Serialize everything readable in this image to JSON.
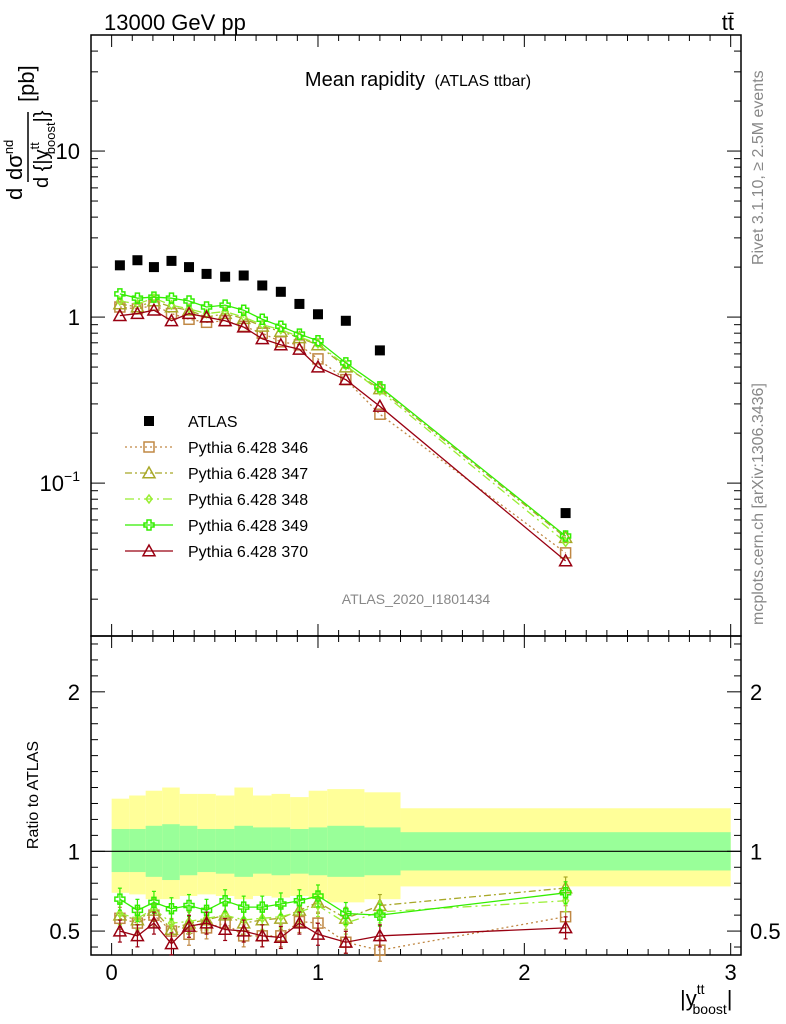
{
  "header": {
    "left": "13000 GeV pp",
    "right": "tt̄"
  },
  "side_text": {
    "rivet": "Rivet 3.1.10, ≥ 2.5M events",
    "mcplots": "mcplots.cern.ch [arXiv:1306.3436]"
  },
  "watermark": "ATLAS_2020_I1801434",
  "chart_data": {
    "type": "scatter",
    "title": "Mean rapidity",
    "subtitle": "(ATLAS ttbar)",
    "ylabel_main": "d dσ^nd / d{|y^tt_boost|} [pb]",
    "ylabel_ratio": "Ratio to ATLAS",
    "xlabel": "|y^tt_boost|",
    "xlim": [
      -0.1,
      3.05
    ],
    "ylim_main": [
      0.012,
      50
    ],
    "yscale_main": "log",
    "ylim_ratio": [
      0.35,
      2.35
    ],
    "x_ticks": [
      "0",
      "1",
      "2",
      "3"
    ],
    "y_ticks_main": [
      "10^-1",
      "1",
      "10"
    ],
    "y_ticks_ratio": [
      "0.5",
      "1",
      "2"
    ],
    "legend_position": "middle-left",
    "x": [
      0.04,
      0.125,
      0.205,
      0.29,
      0.375,
      0.46,
      0.55,
      0.64,
      0.73,
      0.82,
      0.91,
      1.0,
      1.135,
      1.3,
      2.2
    ],
    "bin_edges": [
      0,
      0.085,
      0.165,
      0.245,
      0.33,
      0.415,
      0.505,
      0.595,
      0.685,
      0.775,
      0.865,
      0.955,
      1.045,
      1.225,
      1.4,
      3.0
    ],
    "band_green": [
      [
        0.87,
        1.14
      ],
      [
        0.87,
        1.14
      ],
      [
        0.84,
        1.16
      ],
      [
        0.82,
        1.17
      ],
      [
        0.85,
        1.16
      ],
      [
        0.87,
        1.14
      ],
      [
        0.86,
        1.14
      ],
      [
        0.84,
        1.16
      ],
      [
        0.86,
        1.15
      ],
      [
        0.85,
        1.15
      ],
      [
        0.86,
        1.14
      ],
      [
        0.85,
        1.15
      ],
      [
        0.84,
        1.16
      ],
      [
        0.85,
        1.15
      ],
      [
        0.88,
        1.12
      ]
    ],
    "band_yellow": [
      [
        0.74,
        1.33
      ],
      [
        0.73,
        1.35
      ],
      [
        0.7,
        1.38
      ],
      [
        0.7,
        1.4
      ],
      [
        0.72,
        1.36
      ],
      [
        0.73,
        1.36
      ],
      [
        0.72,
        1.35
      ],
      [
        0.7,
        1.4
      ],
      [
        0.72,
        1.35
      ],
      [
        0.71,
        1.36
      ],
      [
        0.72,
        1.34
      ],
      [
        0.7,
        1.38
      ],
      [
        0.68,
        1.39
      ],
      [
        0.7,
        1.37
      ],
      [
        0.78,
        1.27
      ]
    ],
    "series": [
      {
        "name": "ATLAS",
        "color": "#000000",
        "marker": "square-filled",
        "dash": "",
        "values": [
          2.05,
          2.2,
          2.0,
          2.18,
          2.0,
          1.82,
          1.75,
          1.78,
          1.55,
          1.42,
          1.2,
          1.04,
          0.95,
          0.63,
          0.066
        ],
        "ratio": [
          1,
          1,
          1,
          1,
          1,
          1,
          1,
          1,
          1,
          1,
          1,
          1,
          1,
          1,
          1
        ]
      },
      {
        "name": "Pythia 6.428 346",
        "color": "#c08844",
        "marker": "square-open",
        "dash": "2,3",
        "values": [
          1.15,
          1.12,
          1.18,
          1.05,
          0.97,
          0.93,
          0.95,
          0.88,
          0.8,
          0.71,
          0.68,
          0.56,
          0.42,
          0.26,
          0.038
        ],
        "ratio": [
          0.58,
          0.55,
          0.6,
          0.5,
          0.48,
          0.52,
          0.55,
          0.47,
          0.47,
          0.47,
          0.56,
          0.55,
          0.43,
          0.38,
          0.59
        ]
      },
      {
        "name": "Pythia 6.428 347",
        "color": "#a8a828",
        "marker": "triangle-open",
        "dash": "7,3,2,3",
        "values": [
          1.2,
          1.15,
          1.25,
          1.15,
          1.1,
          1.0,
          1.05,
          0.98,
          0.88,
          0.82,
          0.75,
          0.68,
          0.5,
          0.37,
          0.047
        ],
        "ratio": [
          0.6,
          0.57,
          0.63,
          0.51,
          0.55,
          0.57,
          0.6,
          0.55,
          0.57,
          0.58,
          0.63,
          0.68,
          0.58,
          0.66,
          0.77
        ]
      },
      {
        "name": "Pythia 6.428 348",
        "color": "#99ee33",
        "marker": "diamond-open",
        "dash": "9,4,2,4",
        "values": [
          1.25,
          1.2,
          1.3,
          1.18,
          1.12,
          1.05,
          1.08,
          1.0,
          0.9,
          0.84,
          0.76,
          0.69,
          0.51,
          0.36,
          0.044
        ],
        "ratio": [
          0.61,
          0.58,
          0.64,
          0.55,
          0.56,
          0.58,
          0.6,
          0.57,
          0.58,
          0.59,
          0.62,
          0.66,
          0.55,
          0.62,
          0.69
        ]
      },
      {
        "name": "Pythia 6.428 349",
        "color": "#33ee00",
        "marker": "cross-open",
        "dash": "",
        "values": [
          1.38,
          1.3,
          1.32,
          1.3,
          1.25,
          1.15,
          1.18,
          1.1,
          0.97,
          0.88,
          0.79,
          0.72,
          0.53,
          0.38,
          0.048
        ],
        "ratio": [
          0.7,
          0.63,
          0.68,
          0.64,
          0.66,
          0.63,
          0.69,
          0.65,
          0.65,
          0.67,
          0.69,
          0.72,
          0.61,
          0.6,
          0.74
        ]
      },
      {
        "name": "Pythia 6.428 370",
        "color": "#990011",
        "marker": "triangle-open",
        "dash": "",
        "values": [
          1.02,
          1.05,
          1.1,
          0.95,
          1.05,
          1.0,
          0.95,
          0.87,
          0.74,
          0.68,
          0.64,
          0.5,
          0.42,
          0.29,
          0.034
        ],
        "ratio": [
          0.5,
          0.47,
          0.55,
          0.42,
          0.53,
          0.55,
          0.51,
          0.5,
          0.47,
          0.46,
          0.55,
          0.48,
          0.43,
          0.47,
          0.52
        ]
      }
    ]
  }
}
